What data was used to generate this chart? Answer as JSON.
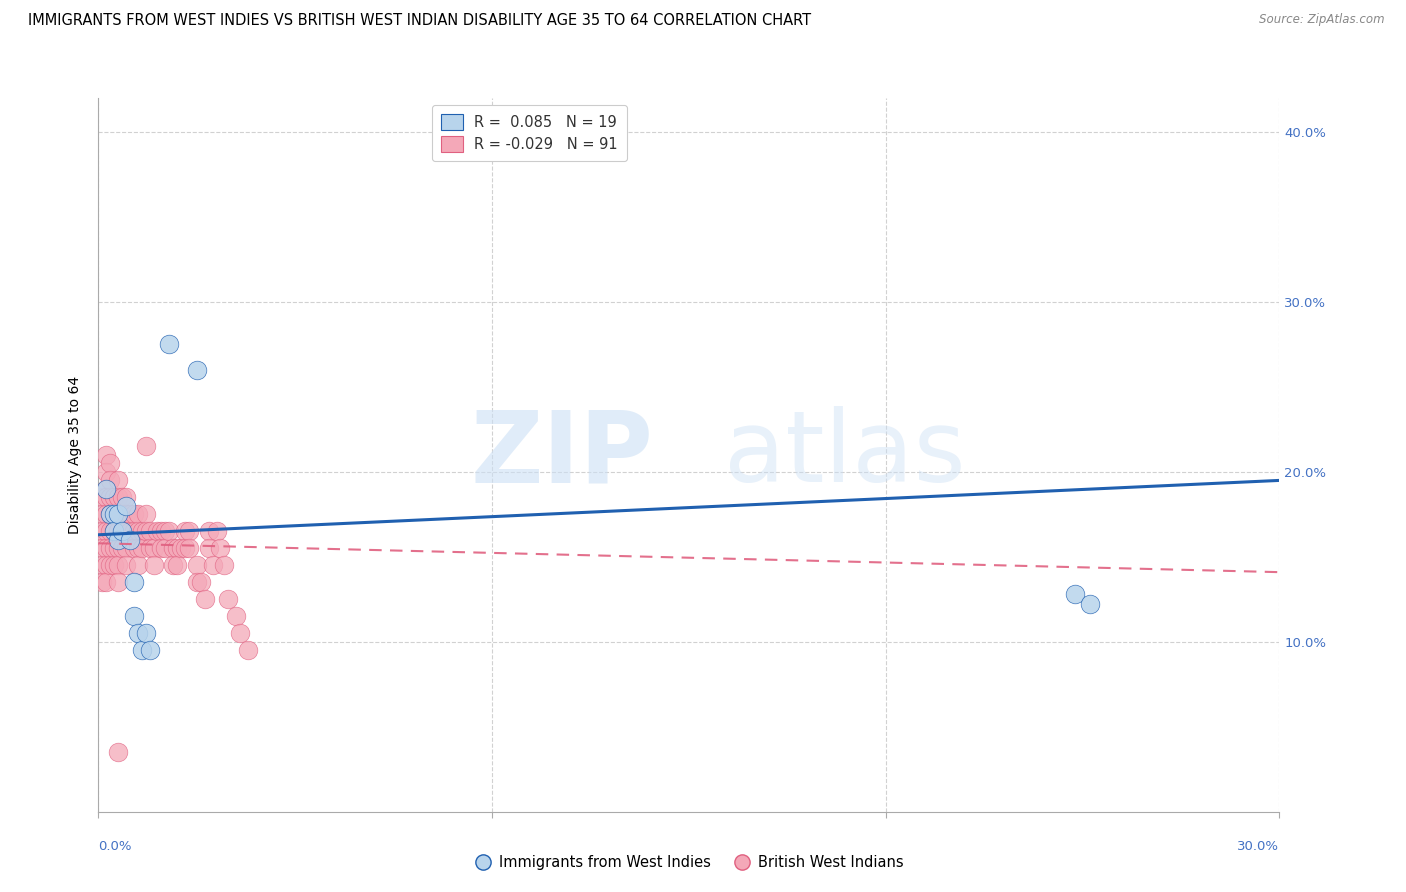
{
  "title": "IMMIGRANTS FROM WEST INDIES VS BRITISH WEST INDIAN DISABILITY AGE 35 TO 64 CORRELATION CHART",
  "source": "Source: ZipAtlas.com",
  "ylabel": "Disability Age 35 to 64",
  "legend_blue_r": " 0.085",
  "legend_blue_n": "19",
  "legend_pink_r": "-0.029",
  "legend_pink_n": "91",
  "legend_label_blue": "Immigrants from West Indies",
  "legend_label_pink": "British West Indians",
  "xlim": [
    0.0,
    0.3
  ],
  "ylim": [
    0.0,
    0.42
  ],
  "blue_scatter_x": [
    0.002,
    0.003,
    0.004,
    0.004,
    0.005,
    0.005,
    0.006,
    0.007,
    0.008,
    0.009,
    0.009,
    0.01,
    0.011,
    0.012,
    0.013,
    0.018,
    0.025,
    0.248,
    0.252
  ],
  "blue_scatter_y": [
    0.19,
    0.175,
    0.175,
    0.165,
    0.175,
    0.16,
    0.165,
    0.18,
    0.16,
    0.135,
    0.115,
    0.105,
    0.095,
    0.105,
    0.095,
    0.275,
    0.26,
    0.128,
    0.122
  ],
  "pink_scatter_x": [
    0.001,
    0.001,
    0.001,
    0.001,
    0.001,
    0.001,
    0.002,
    0.002,
    0.002,
    0.002,
    0.002,
    0.002,
    0.002,
    0.002,
    0.002,
    0.003,
    0.003,
    0.003,
    0.003,
    0.003,
    0.003,
    0.003,
    0.004,
    0.004,
    0.004,
    0.004,
    0.004,
    0.005,
    0.005,
    0.005,
    0.005,
    0.005,
    0.005,
    0.005,
    0.006,
    0.006,
    0.006,
    0.006,
    0.007,
    0.007,
    0.007,
    0.007,
    0.007,
    0.008,
    0.008,
    0.009,
    0.009,
    0.009,
    0.01,
    0.01,
    0.01,
    0.01,
    0.011,
    0.011,
    0.012,
    0.012,
    0.012,
    0.013,
    0.013,
    0.014,
    0.014,
    0.015,
    0.016,
    0.016,
    0.017,
    0.017,
    0.018,
    0.019,
    0.019,
    0.02,
    0.02,
    0.021,
    0.022,
    0.022,
    0.023,
    0.023,
    0.025,
    0.025,
    0.026,
    0.027,
    0.028,
    0.028,
    0.029,
    0.03,
    0.031,
    0.032,
    0.033,
    0.035,
    0.036,
    0.038,
    0.005
  ],
  "pink_scatter_y": [
    0.185,
    0.175,
    0.165,
    0.155,
    0.145,
    0.135,
    0.21,
    0.2,
    0.19,
    0.185,
    0.175,
    0.165,
    0.155,
    0.145,
    0.135,
    0.205,
    0.195,
    0.185,
    0.175,
    0.165,
    0.155,
    0.145,
    0.185,
    0.175,
    0.165,
    0.155,
    0.145,
    0.195,
    0.185,
    0.175,
    0.165,
    0.155,
    0.145,
    0.135,
    0.185,
    0.175,
    0.165,
    0.155,
    0.185,
    0.175,
    0.165,
    0.155,
    0.145,
    0.175,
    0.165,
    0.175,
    0.165,
    0.155,
    0.175,
    0.165,
    0.155,
    0.145,
    0.165,
    0.155,
    0.215,
    0.175,
    0.165,
    0.165,
    0.155,
    0.155,
    0.145,
    0.165,
    0.165,
    0.155,
    0.165,
    0.155,
    0.165,
    0.155,
    0.145,
    0.155,
    0.145,
    0.155,
    0.165,
    0.155,
    0.165,
    0.155,
    0.145,
    0.135,
    0.135,
    0.125,
    0.165,
    0.155,
    0.145,
    0.165,
    0.155,
    0.145,
    0.125,
    0.115,
    0.105,
    0.095,
    0.035
  ],
  "blue_line_x": [
    0.0,
    0.3
  ],
  "blue_line_y": [
    0.163,
    0.195
  ],
  "pink_line_x": [
    0.0,
    0.3
  ],
  "pink_line_y": [
    0.158,
    0.141
  ],
  "watermark_zip": "ZIP",
  "watermark_atlas": "atlas",
  "background_color": "#ffffff",
  "blue_color": "#b8d4ec",
  "pink_color": "#f4a8b8",
  "blue_line_color": "#2060b0",
  "pink_line_color": "#e06080",
  "grid_color": "#cccccc",
  "right_tick_color": "#4472c4",
  "title_fontsize": 10.5,
  "axis_label_fontsize": 10,
  "tick_fontsize": 9.5
}
